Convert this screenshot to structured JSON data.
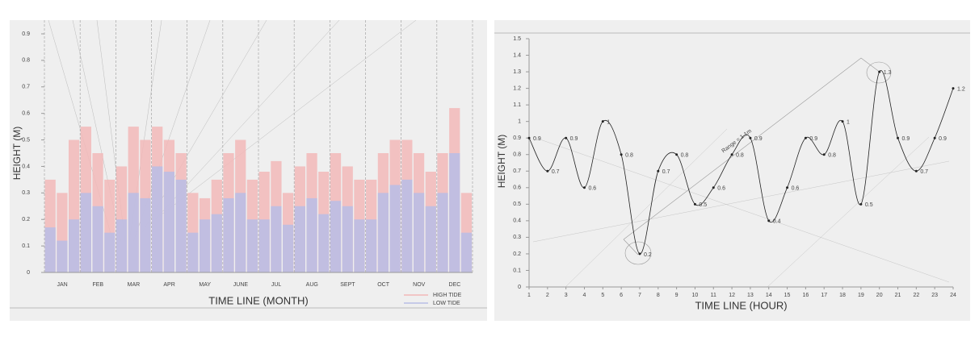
{
  "chart_data": [
    {
      "type": "bar",
      "x_label": "TIME LINE (MONTH)",
      "y_label": "HEIGHT (M)",
      "categories": [
        null,
        "JAN",
        null,
        null,
        "FEB",
        null,
        null,
        "MAR",
        null,
        null,
        "APR",
        null,
        null,
        "MAY",
        null,
        null,
        "JUNE",
        null,
        null,
        "JUL",
        null,
        null,
        "AUG",
        null,
        null,
        "SEPT",
        null,
        null,
        "OCT",
        null,
        null,
        "NOV",
        null,
        null,
        "DEC",
        null
      ],
      "series": [
        {
          "name": "HIGH TIDE",
          "color": "#f2b8b8",
          "values": [
            0.35,
            0.3,
            0.5,
            0.55,
            0.45,
            0.35,
            0.4,
            0.55,
            0.5,
            0.55,
            0.5,
            0.45,
            0.3,
            0.28,
            0.35,
            0.45,
            0.5,
            0.35,
            0.38,
            0.42,
            0.3,
            0.4,
            0.45,
            0.38,
            0.45,
            0.4,
            0.35,
            0.35,
            0.45,
            0.5,
            0.5,
            0.45,
            0.38,
            0.45,
            0.62,
            0.3
          ]
        },
        {
          "name": "LOW TIDE",
          "color": "#b8bde6",
          "values": [
            0.17,
            0.12,
            0.2,
            0.3,
            0.25,
            0.15,
            0.2,
            0.3,
            0.28,
            0.4,
            0.38,
            0.35,
            0.15,
            0.2,
            0.22,
            0.28,
            0.3,
            0.2,
            0.2,
            0.25,
            0.18,
            0.25,
            0.28,
            0.22,
            0.27,
            0.25,
            0.2,
            0.2,
            0.3,
            0.33,
            0.35,
            0.3,
            0.25,
            0.3,
            0.45,
            0.15
          ]
        }
      ],
      "ylim": [
        0,
        0.9
      ],
      "yticks": [
        0,
        0.1,
        0.2,
        0.3,
        0.4,
        0.5,
        0.6,
        0.7,
        0.8,
        0.9
      ],
      "legend": "lower right"
    },
    {
      "type": "line",
      "x_label": "TIME LINE (HOUR)",
      "y_label": "HEIGHT (M)",
      "x": [
        1,
        2,
        3,
        4,
        5,
        6,
        7,
        8,
        9,
        10,
        11,
        12,
        13,
        14,
        15,
        16,
        17,
        18,
        19,
        20,
        21,
        22,
        23,
        24
      ],
      "values": [
        0.9,
        0.7,
        0.9,
        0.6,
        1,
        0.8,
        0.2,
        0.7,
        0.8,
        0.5,
        0.6,
        0.8,
        0.9,
        0.4,
        0.6,
        0.9,
        0.8,
        1,
        0.5,
        1.3,
        0.9,
        0.7,
        0.9,
        1.2
      ],
      "color": "#222",
      "xlim": [
        1,
        24
      ],
      "xticks": [
        1,
        2,
        3,
        4,
        5,
        6,
        7,
        8,
        9,
        10,
        11,
        12,
        13,
        14,
        15,
        16,
        17,
        18,
        19,
        20,
        21,
        22,
        23,
        24
      ],
      "ylim": [
        0,
        1.5
      ],
      "yticks": [
        0,
        0.1,
        0.2,
        0.3,
        0.4,
        0.5,
        0.6,
        0.7,
        0.8,
        0.9,
        1,
        1.1,
        1.2,
        1.3,
        1.4,
        1.5
      ],
      "annotation": "Range = 1.1m"
    }
  ]
}
